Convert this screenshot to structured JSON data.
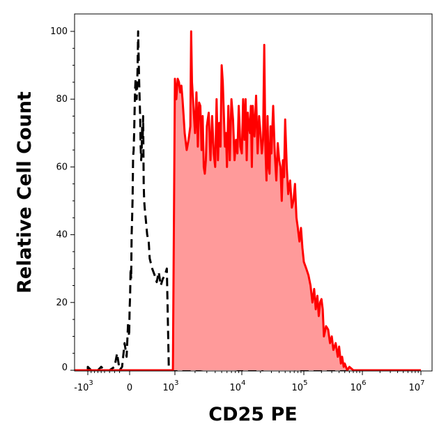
{
  "chart_data": {
    "type": "histogram",
    "xlabel": "CD25 PE",
    "ylabel": "Relative Cell Count",
    "x_scale": "biexponential",
    "ylim": [
      0,
      100
    ],
    "y_ticks": [
      {
        "value": 0,
        "label": "0"
      },
      {
        "value": 20,
        "label": "20"
      },
      {
        "value": 40,
        "label": "40"
      },
      {
        "value": 60,
        "label": "60"
      },
      {
        "value": 80,
        "label": "80"
      },
      {
        "value": 100,
        "label": "100"
      }
    ],
    "x_ticks": [
      {
        "value": -1000,
        "base": "-10",
        "exp": "3"
      },
      {
        "value": 0,
        "base": "0",
        "exp": ""
      },
      {
        "value": 1000,
        "base": "10",
        "exp": "3"
      },
      {
        "value": 10000,
        "base": "10",
        "exp": "4"
      },
      {
        "value": 100000,
        "base": "10",
        "exp": "5"
      },
      {
        "value": 1000000,
        "base": "10",
        "exp": "6"
      },
      {
        "value": 10000000,
        "base": "10",
        "exp": "7"
      }
    ],
    "series": [
      {
        "style": "dashed",
        "color": "#000000",
        "fill": "none",
        "points": [
          [
            -1500,
            0
          ],
          [
            -1000,
            0
          ],
          [
            -1000,
            1
          ],
          [
            -900,
            0
          ],
          [
            -700,
            0
          ],
          [
            -600,
            1
          ],
          [
            -500,
            0
          ],
          [
            -400,
            0
          ],
          [
            -300,
            1
          ],
          [
            -250,
            5
          ],
          [
            -200,
            0
          ],
          [
            -150,
            1
          ],
          [
            -100,
            8
          ],
          [
            -60,
            4
          ],
          [
            -30,
            14
          ],
          [
            -10,
            10
          ],
          [
            0,
            18
          ],
          [
            10,
            22
          ],
          [
            20,
            30
          ],
          [
            30,
            27
          ],
          [
            40,
            40
          ],
          [
            50,
            45
          ],
          [
            60,
            51
          ],
          [
            70,
            63
          ],
          [
            80,
            65
          ],
          [
            90,
            70
          ],
          [
            100,
            77
          ],
          [
            110,
            83
          ],
          [
            120,
            86
          ],
          [
            130,
            82
          ],
          [
            140,
            80
          ],
          [
            150,
            84
          ],
          [
            160,
            90
          ],
          [
            170,
            100
          ],
          [
            180,
            92
          ],
          [
            190,
            85
          ],
          [
            200,
            80
          ],
          [
            210,
            75
          ],
          [
            220,
            66
          ],
          [
            230,
            62
          ],
          [
            240,
            65
          ],
          [
            250,
            72
          ],
          [
            260,
            68
          ],
          [
            270,
            75
          ],
          [
            280,
            55
          ],
          [
            290,
            50
          ],
          [
            300,
            48
          ],
          [
            320,
            45
          ],
          [
            350,
            40
          ],
          [
            380,
            38
          ],
          [
            400,
            33
          ],
          [
            450,
            30
          ],
          [
            500,
            28
          ],
          [
            550,
            26
          ],
          [
            600,
            29
          ],
          [
            650,
            25
          ],
          [
            700,
            27
          ],
          [
            750,
            28
          ],
          [
            800,
            30
          ],
          [
            850,
            0
          ],
          [
            1000,
            0
          ],
          [
            2000,
            0
          ],
          [
            5000,
            1
          ],
          [
            10000,
            0
          ],
          [
            20000,
            0
          ],
          [
            30000,
            1
          ],
          [
            100000,
            0
          ],
          [
            200000,
            0
          ],
          [
            10000000,
            0
          ]
        ]
      },
      {
        "style": "solid",
        "color": "#ff0000",
        "fill": "#ff9a9a",
        "points": [
          [
            -1500,
            0
          ],
          [
            500,
            0
          ],
          [
            800,
            0
          ],
          [
            950,
            0
          ],
          [
            1000,
            86
          ],
          [
            1050,
            80
          ],
          [
            1100,
            86
          ],
          [
            1150,
            85
          ],
          [
            1200,
            82
          ],
          [
            1250,
            84
          ],
          [
            1300,
            80
          ],
          [
            1350,
            75
          ],
          [
            1400,
            70
          ],
          [
            1500,
            65
          ],
          [
            1600,
            68
          ],
          [
            1700,
            72
          ],
          [
            1750,
            100
          ],
          [
            1800,
            85
          ],
          [
            1900,
            77
          ],
          [
            2000,
            70
          ],
          [
            2100,
            82
          ],
          [
            2200,
            66
          ],
          [
            2300,
            79
          ],
          [
            2400,
            78
          ],
          [
            2500,
            65
          ],
          [
            2600,
            75
          ],
          [
            2700,
            60
          ],
          [
            2800,
            58
          ],
          [
            2900,
            62
          ],
          [
            3000,
            72
          ],
          [
            3200,
            76
          ],
          [
            3400,
            62
          ],
          [
            3600,
            75
          ],
          [
            3800,
            64
          ],
          [
            4000,
            60
          ],
          [
            4200,
            80
          ],
          [
            4400,
            62
          ],
          [
            4600,
            73
          ],
          [
            4800,
            66
          ],
          [
            5000,
            90
          ],
          [
            5200,
            85
          ],
          [
            5400,
            75
          ],
          [
            5600,
            66
          ],
          [
            5800,
            70
          ],
          [
            6000,
            60
          ],
          [
            6300,
            78
          ],
          [
            6600,
            62
          ],
          [
            7000,
            80
          ],
          [
            7400,
            74
          ],
          [
            7800,
            62
          ],
          [
            8200,
            68
          ],
          [
            8600,
            64
          ],
          [
            9000,
            78
          ],
          [
            9500,
            66
          ],
          [
            10000,
            64
          ],
          [
            10500,
            80
          ],
          [
            11000,
            68
          ],
          [
            11500,
            80
          ],
          [
            12000,
            62
          ],
          [
            12500,
            76
          ],
          [
            13000,
            72
          ],
          [
            13500,
            70
          ],
          [
            14000,
            78
          ],
          [
            14500,
            60
          ],
          [
            15000,
            78
          ],
          [
            16000,
            69
          ],
          [
            17000,
            81
          ],
          [
            18000,
            64
          ],
          [
            19000,
            75
          ],
          [
            20000,
            70
          ],
          [
            21000,
            64
          ],
          [
            22000,
            68
          ],
          [
            23000,
            96
          ],
          [
            24000,
            66
          ],
          [
            25000,
            56
          ],
          [
            26000,
            75
          ],
          [
            27000,
            60
          ],
          [
            28000,
            58
          ],
          [
            29000,
            72
          ],
          [
            30000,
            64
          ],
          [
            32000,
            78
          ],
          [
            34000,
            64
          ],
          [
            36000,
            56
          ],
          [
            38000,
            67
          ],
          [
            40000,
            62
          ],
          [
            42000,
            60
          ],
          [
            44000,
            50
          ],
          [
            46000,
            62
          ],
          [
            48000,
            57
          ],
          [
            50000,
            74
          ],
          [
            53000,
            60
          ],
          [
            56000,
            52
          ],
          [
            60000,
            56
          ],
          [
            64000,
            48
          ],
          [
            68000,
            50
          ],
          [
            72000,
            55
          ],
          [
            76000,
            45
          ],
          [
            80000,
            42
          ],
          [
            85000,
            38
          ],
          [
            90000,
            42
          ],
          [
            95000,
            36
          ],
          [
            100000,
            32
          ],
          [
            110000,
            30
          ],
          [
            120000,
            28
          ],
          [
            130000,
            25
          ],
          [
            140000,
            20
          ],
          [
            150000,
            24
          ],
          [
            160000,
            18
          ],
          [
            170000,
            22
          ],
          [
            180000,
            16
          ],
          [
            190000,
            20
          ],
          [
            200000,
            21
          ],
          [
            210000,
            18
          ],
          [
            220000,
            10
          ],
          [
            240000,
            13
          ],
          [
            260000,
            12
          ],
          [
            280000,
            8
          ],
          [
            300000,
            10
          ],
          [
            320000,
            6
          ],
          [
            350000,
            8
          ],
          [
            380000,
            4
          ],
          [
            400000,
            7
          ],
          [
            430000,
            2
          ],
          [
            450000,
            4
          ],
          [
            480000,
            1
          ],
          [
            500000,
            2
          ],
          [
            550000,
            0
          ],
          [
            600000,
            1
          ],
          [
            700000,
            0
          ],
          [
            1000000,
            0
          ],
          [
            2000000,
            0
          ],
          [
            5000000,
            0
          ],
          [
            10000000,
            0
          ]
        ]
      }
    ]
  }
}
